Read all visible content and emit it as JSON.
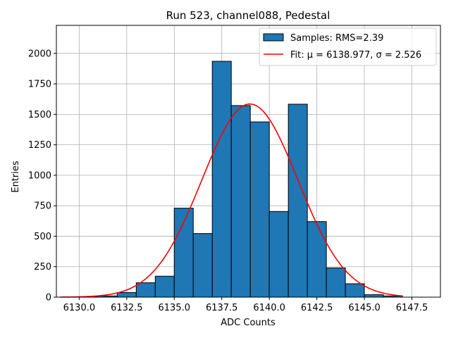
{
  "chart_data": {
    "type": "bar",
    "title": "Run 523, channel088, Pedestal",
    "xlabel": "ADC Counts",
    "ylabel": "Entries",
    "xlim": [
      6128.8,
      6149.0
    ],
    "ylim": [
      0,
      2230
    ],
    "grid": true,
    "legend_position": "top-right",
    "bin_width": 1.0,
    "x_ticks": [
      6130.0,
      6132.5,
      6135.0,
      6137.5,
      6140.0,
      6142.5,
      6145.0,
      6147.5
    ],
    "x_tick_labels": [
      "6130.0",
      "6132.5",
      "6135.0",
      "6137.5",
      "6140.0",
      "6142.5",
      "6145.0",
      "6147.5"
    ],
    "y_ticks": [
      0,
      250,
      500,
      750,
      1000,
      1250,
      1500,
      1750,
      2000
    ],
    "y_tick_labels": [
      "0",
      "250",
      "500",
      "750",
      "1000",
      "1250",
      "1500",
      "1750",
      "2000"
    ],
    "series": [
      {
        "name": "Samples: RMS=2.39",
        "type": "histogram",
        "color": "#1f77b4",
        "edge_color": "#000000",
        "bin_starts": [
          6130,
          6131,
          6132,
          6133,
          6134,
          6135,
          6136,
          6137,
          6138,
          6139,
          6140,
          6141,
          6142,
          6143,
          6144,
          6145,
          6146
        ],
        "values": [
          3,
          10,
          38,
          118,
          172,
          730,
          522,
          1935,
          1572,
          1438,
          703,
          1583,
          620,
          240,
          110,
          20,
          10
        ]
      },
      {
        "name": "Fit: μ = 6138.977, σ = 2.526",
        "type": "line",
        "color": "#ff0000",
        "mu": 6138.977,
        "sigma": 2.526,
        "amplitude": 1585,
        "x_range": [
          6129.0,
          6147.0
        ]
      }
    ]
  }
}
